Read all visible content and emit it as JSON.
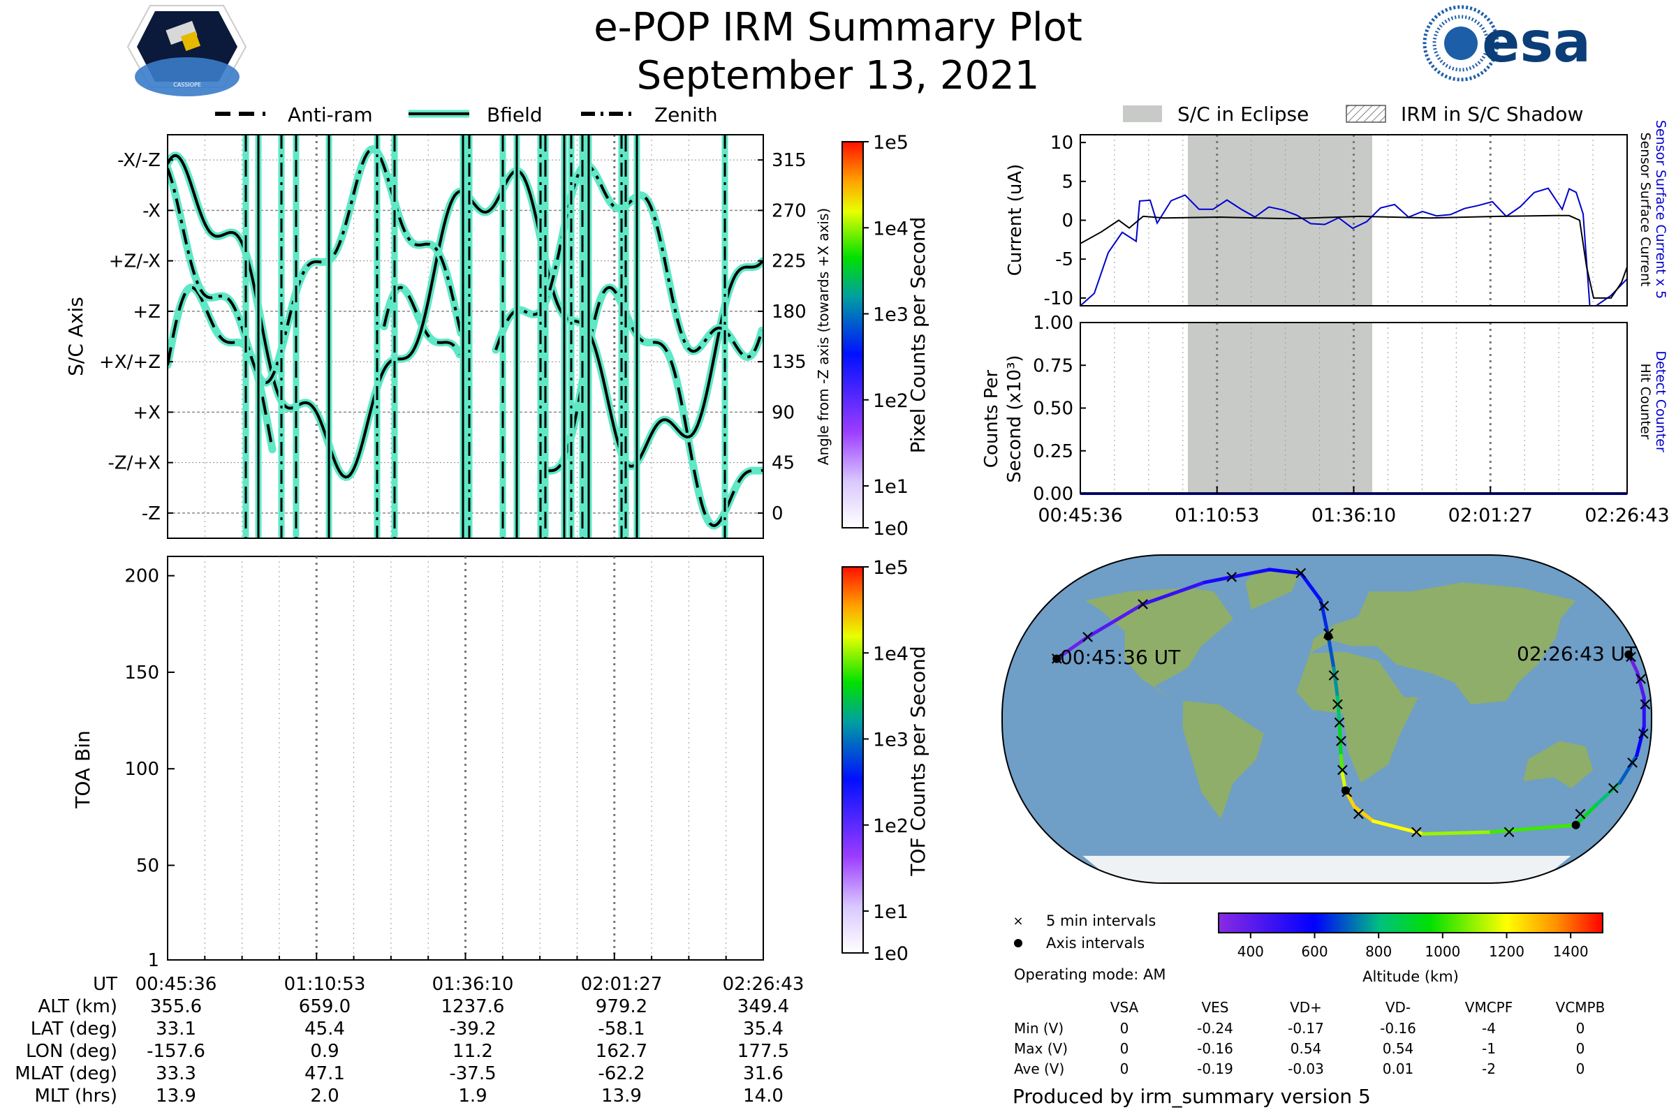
{
  "header": {
    "title": "e-POP IRM Summary Plot",
    "date": "September 13, 2021",
    "mission_logo_text": "CASSIOPE",
    "agency_logo_text": "esa"
  },
  "legend_top": {
    "items": [
      "Anti-ram",
      "Bfield",
      "Zenith"
    ]
  },
  "legend_eclipse": {
    "items": [
      "S/C in Eclipse",
      "IRM in S/C Shadow"
    ]
  },
  "colors": {
    "trace_outline": "#5fe8c6",
    "trace": "#000000",
    "eclipse": "#c8cac8",
    "sensor_current": "#0000cc",
    "ocean": "#6f9ec7",
    "land": "#8fae6a"
  },
  "time_ticks": [
    "00:45:36",
    "01:10:53",
    "01:36:10",
    "02:01:27",
    "02:26:43"
  ],
  "chart_data": [
    {
      "id": "sc-axis",
      "type": "line",
      "ylabel": "S/C Axis",
      "ylabel_right": "Angle from -Z axis (towards +X axis)",
      "yticks_left": [
        "-X/-Z",
        "-X",
        "+Z/-X",
        "+Z",
        "+X/+Z",
        "+X",
        "-Z/+X",
        "-Z"
      ],
      "yticks_right": [
        315,
        270,
        225,
        180,
        135,
        90,
        45,
        0
      ],
      "ylim": [
        -22.5,
        337.5
      ],
      "series": [
        {
          "name": "Anti-ram"
        },
        {
          "name": "Bfield"
        },
        {
          "name": "Zenith"
        }
      ]
    },
    {
      "id": "pixel-colorbar",
      "type": "heatmap",
      "label": "Pixel Counts per Second",
      "ticks": [
        "1e5",
        "1e4",
        "1e3",
        "1e2",
        "1e1",
        "1e0"
      ]
    },
    {
      "id": "toa",
      "type": "heatmap",
      "ylabel": "TOA Bin",
      "yticks": [
        1,
        50,
        100,
        150,
        200
      ],
      "ylim": [
        1,
        210
      ],
      "cbar_label": "TOF Counts per Second",
      "cbar_ticks": [
        "1e5",
        "1e4",
        "1e3",
        "1e2",
        "1e1",
        "1e0"
      ]
    },
    {
      "id": "current",
      "type": "line",
      "ylabel": "Current (uA)",
      "ylim": [
        -11,
        11
      ],
      "yticks": [
        10,
        5,
        0,
        -5,
        -10
      ],
      "right_labels": [
        "Sensor Surface Current x 5",
        "Sensor Surface Current"
      ],
      "series": [
        {
          "name": "Sensor Surface Current x 5"
        },
        {
          "name": "Sensor Surface Current"
        }
      ]
    },
    {
      "id": "counts",
      "type": "line",
      "ylabel": "Counts Per Second (x10³)",
      "ylim": [
        0,
        1
      ],
      "yticks": [
        "1.00",
        "0.75",
        "0.50",
        "0.25",
        "0.00"
      ],
      "right_labels": [
        "Detect Counter",
        "Hit Counter"
      ],
      "series": [
        {
          "name": "Detect Counter",
          "values": [
            0,
            0
          ]
        }
      ]
    },
    {
      "id": "map",
      "type": "scatter",
      "start_label": "00:45:36 UT",
      "end_label": "02:26:43 UT",
      "legend": [
        "5 min intervals",
        "Axis intervals"
      ],
      "colorbar_label": "Altitude (km)",
      "colorbar_ticks": [
        400,
        600,
        800,
        1000,
        1200,
        1400
      ],
      "colorbar_range": [
        300,
        1500
      ],
      "track": [
        {
          "lon": -157.6,
          "lat": 33.1,
          "alt": 355
        },
        {
          "lon": -146,
          "lat": 45,
          "alt": 390
        },
        {
          "lon": -124,
          "lat": 63,
          "alt": 440
        },
        {
          "lon": -90,
          "lat": 75,
          "alt": 520
        },
        {
          "lon": -45,
          "lat": 82,
          "alt": 570
        },
        {
          "lon": -20,
          "lat": 80,
          "alt": 600
        },
        {
          "lon": -4,
          "lat": 65,
          "alt": 630
        },
        {
          "lon": 0.9,
          "lat": 45.4,
          "alt": 659
        },
        {
          "lon": 4,
          "lat": 28,
          "alt": 720
        },
        {
          "lon": 6,
          "lat": 12,
          "alt": 790
        },
        {
          "lon": 7,
          "lat": -3,
          "alt": 860
        },
        {
          "lon": 8,
          "lat": -20,
          "alt": 980
        },
        {
          "lon": 9,
          "lat": -30,
          "alt": 1100
        },
        {
          "lon": 11.2,
          "lat": -39.2,
          "alt": 1237
        },
        {
          "lon": 17,
          "lat": -48,
          "alt": 1280
        },
        {
          "lon": 30,
          "lat": -56,
          "alt": 1250
        },
        {
          "lon": 65,
          "lat": -63,
          "alt": 1150
        },
        {
          "lon": 110,
          "lat": -62,
          "alt": 1060
        },
        {
          "lon": 162.7,
          "lat": -58.1,
          "alt": 979
        },
        {
          "lon": 166,
          "lat": -47,
          "alt": 880
        },
        {
          "lon": 172,
          "lat": -35,
          "alt": 760
        },
        {
          "lon": 175,
          "lat": -20,
          "alt": 640
        },
        {
          "lon": 176,
          "lat": -4,
          "alt": 540
        },
        {
          "lon": 177,
          "lat": 12,
          "alt": 460
        },
        {
          "lon": 177.5,
          "lat": 26,
          "alt": 390
        },
        {
          "lon": 177.5,
          "lat": 35.4,
          "alt": 349
        }
      ],
      "interval_markers": [
        {
          "lon": -157.6,
          "lat": 33.1
        },
        {
          "lon": -146,
          "lat": 45
        },
        {
          "lon": -124,
          "lat": 63
        },
        {
          "lon": -72,
          "lat": 78
        },
        {
          "lon": -20,
          "lat": 80
        },
        {
          "lon": -2,
          "lat": 62
        },
        {
          "lon": 1,
          "lat": 47
        },
        {
          "lon": 4,
          "lat": 24
        },
        {
          "lon": 6,
          "lat": 8
        },
        {
          "lon": 7,
          "lat": -2
        },
        {
          "lon": 8,
          "lat": -12
        },
        {
          "lon": 9,
          "lat": -28
        },
        {
          "lon": 12,
          "lat": -40
        },
        {
          "lon": 20,
          "lat": -52
        },
        {
          "lon": 60,
          "lat": -62
        },
        {
          "lon": 122,
          "lat": -62
        },
        {
          "lon": 160,
          "lat": -52
        },
        {
          "lon": 170,
          "lat": -38
        },
        {
          "lon": 174,
          "lat": -24
        },
        {
          "lon": 176,
          "lat": -8
        },
        {
          "lon": 177,
          "lat": 8
        },
        {
          "lon": 178,
          "lat": 22
        },
        {
          "lon": 178,
          "lat": 34
        }
      ],
      "axis_markers": [
        {
          "lon": -157.6,
          "lat": 33.1
        },
        {
          "lon": 0.9,
          "lat": 45.4
        },
        {
          "lon": 11.2,
          "lat": -39.2
        },
        {
          "lon": 162.7,
          "lat": -58.1
        },
        {
          "lon": 177.5,
          "lat": 35.4
        }
      ]
    }
  ],
  "info_table": {
    "row_labels": [
      "UT",
      "ALT (km)",
      "LAT (deg)",
      "LON (deg)",
      "MLAT (deg)",
      "MLT (hrs)"
    ],
    "columns": [
      [
        "00:45:36",
        "355.6",
        "33.1",
        "-157.6",
        "33.3",
        "13.9"
      ],
      [
        "01:10:53",
        "659.0",
        "45.4",
        "0.9",
        "47.1",
        "2.0"
      ],
      [
        "01:36:10",
        "1237.6",
        "-39.2",
        "11.2",
        "-37.5",
        "1.9"
      ],
      [
        "02:01:27",
        "979.2",
        "-58.1",
        "162.7",
        "-62.2",
        "13.9"
      ],
      [
        "02:26:43",
        "349.4",
        "35.4",
        "177.5",
        "31.6",
        "14.0"
      ]
    ]
  },
  "operating_mode": "Operating mode: AM",
  "voltage_table": {
    "headers": [
      "VSA",
      "VES",
      "VD+",
      "VD-",
      "VMCPF",
      "VCMPB"
    ],
    "rows": [
      {
        "label": "Min (V)",
        "values": [
          "0",
          "-0.24",
          "-0.17",
          "-0.16",
          "-4",
          "0"
        ]
      },
      {
        "label": "Max (V)",
        "values": [
          "0",
          "-0.16",
          "0.54",
          "0.54",
          "-1",
          "0"
        ]
      },
      {
        "label": "Ave (V)",
        "values": [
          "0",
          "-0.19",
          "-0.03",
          "0.01",
          "-2",
          "0"
        ]
      }
    ]
  },
  "footer": "Produced by irm_summary version 5"
}
